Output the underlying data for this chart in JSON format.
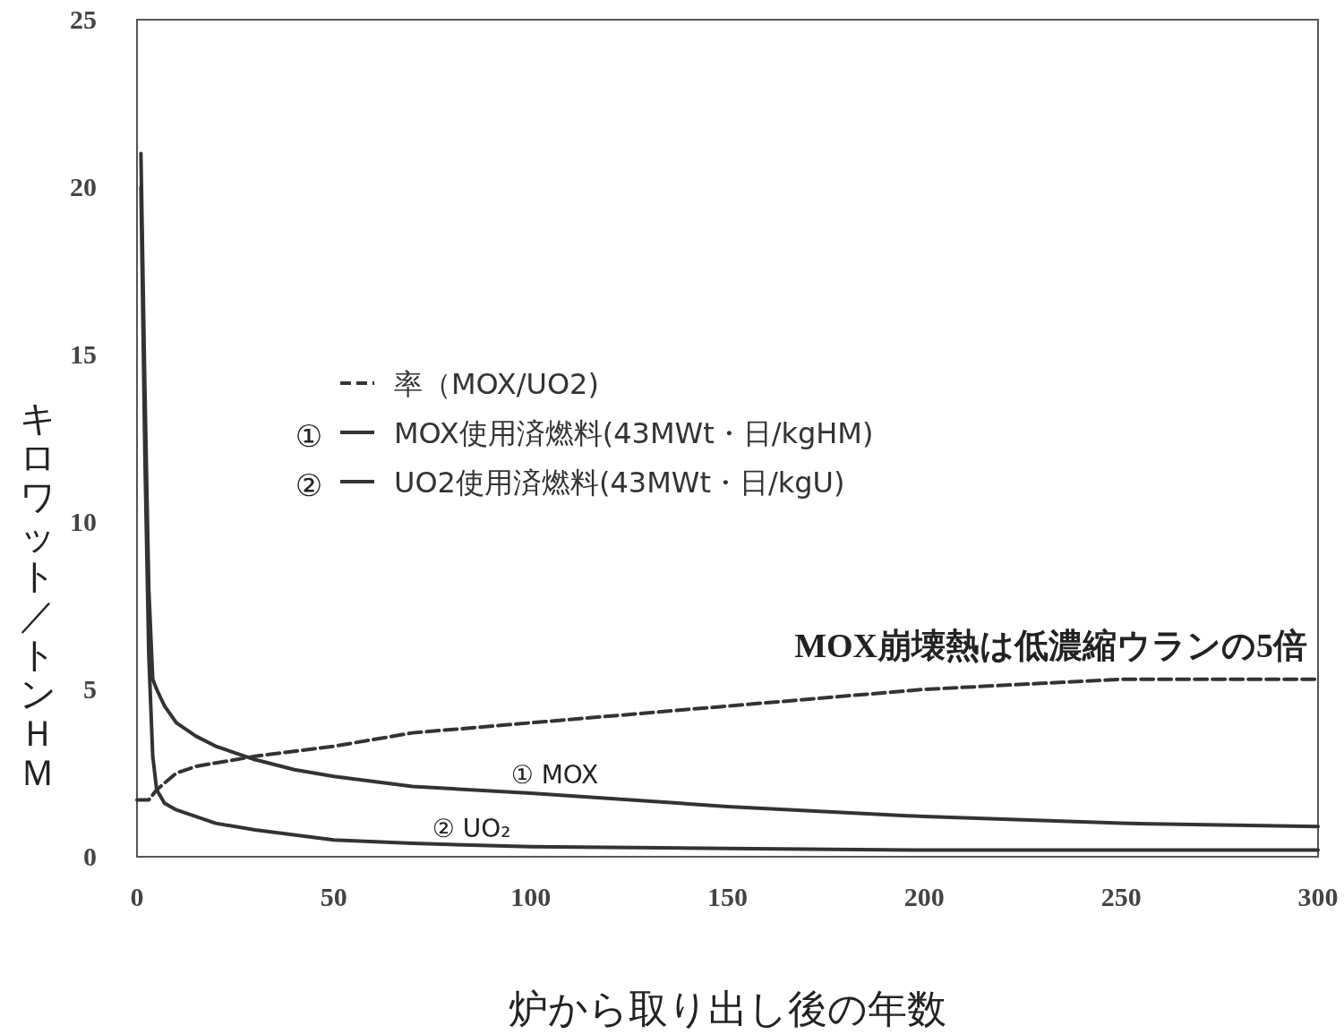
{
  "chart_data": {
    "type": "line",
    "xlabel": "炉から取り出し後の年数",
    "ylabel": "キロワット／トンＨＭ",
    "xlim": [
      0,
      300
    ],
    "xticks": [
      0,
      50,
      100,
      150,
      200,
      250,
      300
    ],
    "ylim": [
      0,
      25
    ],
    "yticks": [
      0,
      5,
      10,
      15,
      20,
      25
    ],
    "grid": false,
    "legend": "top",
    "series": [
      {
        "name": "率（MOX/UO2)",
        "color": "#333333",
        "line_style": "dashed",
        "x": [
          0,
          3,
          5,
          10,
          15,
          20,
          30,
          50,
          70,
          100,
          150,
          200,
          250,
          300
        ],
        "values": [
          1.7,
          1.7,
          2.0,
          2.5,
          2.7,
          2.8,
          3.0,
          3.3,
          3.7,
          4.0,
          4.5,
          5.0,
          5.3,
          5.3
        ]
      },
      {
        "name": "MOX使用済燃料(43MWt・日/kgHM)",
        "color": "#333333",
        "line_style": "solid",
        "x": [
          1,
          2,
          3,
          4,
          5,
          7,
          10,
          15,
          20,
          30,
          40,
          50,
          70,
          100,
          150,
          200,
          250,
          300
        ],
        "values": [
          21,
          14,
          8,
          5.3,
          5,
          4.5,
          4,
          3.6,
          3.3,
          2.9,
          2.6,
          2.4,
          2.1,
          1.9,
          1.5,
          1.2,
          1.0,
          0.9
        ]
      },
      {
        "name": "UO2使用済燃料(43MWt・日/kgU)",
        "color": "#333333",
        "line_style": "solid",
        "x": [
          1,
          2,
          3,
          4,
          5,
          7,
          10,
          15,
          20,
          30,
          50,
          70,
          100,
          150,
          200,
          250,
          300
        ],
        "values": [
          20,
          12,
          6,
          3,
          2,
          1.6,
          1.4,
          1.2,
          1.0,
          0.8,
          0.5,
          0.4,
          0.3,
          0.25,
          0.2,
          0.2,
          0.2
        ]
      }
    ],
    "annotations": [
      "①",
      "②",
      "MOX崩壊熱は低濃縮ウランの5倍",
      "① MOX",
      "② UO₂"
    ]
  }
}
